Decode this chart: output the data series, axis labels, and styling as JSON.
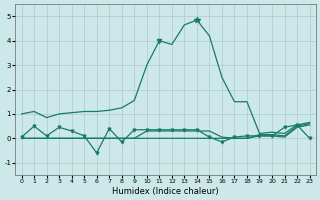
{
  "xlabel": "Humidex (Indice chaleur)",
  "bg_color": "#cce8e8",
  "grid_color": "#b0c8c8",
  "line_color": "#1a7a6a",
  "xlim": [
    -0.5,
    23.5
  ],
  "ylim": [
    -1.5,
    5.5
  ],
  "yticks": [
    -1,
    0,
    1,
    2,
    3,
    4,
    5
  ],
  "xticks": [
    0,
    1,
    2,
    3,
    4,
    5,
    6,
    7,
    8,
    9,
    10,
    11,
    12,
    13,
    14,
    15,
    16,
    17,
    18,
    19,
    20,
    21,
    22,
    23
  ],
  "line1_x": [
    0,
    1,
    2,
    3,
    4,
    5,
    6,
    7,
    8,
    9,
    10,
    11,
    12,
    13,
    14,
    15,
    16,
    17,
    18,
    19,
    20,
    21,
    22,
    23
  ],
  "line1_y": [
    1.0,
    1.1,
    0.85,
    1.0,
    1.05,
    1.1,
    1.1,
    1.15,
    1.25,
    1.55,
    3.0,
    4.0,
    3.85,
    4.65,
    4.85,
    4.2,
    2.5,
    1.5,
    1.5,
    0.2,
    0.25,
    0.2,
    0.55,
    0.65
  ],
  "line2_x": [
    0,
    1,
    2,
    3,
    4,
    5,
    6,
    7,
    8,
    9,
    10,
    11,
    12,
    13,
    14,
    15,
    16,
    17,
    18,
    19,
    20,
    21,
    22,
    23
  ],
  "line2_y": [
    0.05,
    0.5,
    0.1,
    0.45,
    0.3,
    0.1,
    -0.6,
    0.4,
    -0.15,
    0.35,
    0.35,
    0.35,
    0.35,
    0.35,
    0.35,
    0.05,
    -0.15,
    0.05,
    0.1,
    0.1,
    0.1,
    0.45,
    0.55,
    0.0
  ],
  "line3_x": [
    0,
    1,
    2,
    3,
    4,
    5,
    6,
    7,
    8,
    9,
    10,
    11,
    12,
    13,
    14,
    15,
    16,
    17,
    18,
    19,
    20,
    21,
    22,
    23
  ],
  "line3_y": [
    0.0,
    0.0,
    0.0,
    0.0,
    0.0,
    0.0,
    0.0,
    0.0,
    0.0,
    0.0,
    0.0,
    0.0,
    0.0,
    0.0,
    0.0,
    0.0,
    0.0,
    0.0,
    0.0,
    0.15,
    0.15,
    0.1,
    0.5,
    0.6
  ],
  "line4_x": [
    0,
    1,
    2,
    3,
    4,
    5,
    6,
    7,
    8,
    9,
    10,
    11,
    12,
    13,
    14,
    15,
    16,
    17,
    18,
    19,
    20,
    21,
    22,
    23
  ],
  "line4_y": [
    0.0,
    0.0,
    0.0,
    0.0,
    0.0,
    0.0,
    0.0,
    0.0,
    0.0,
    0.0,
    0.3,
    0.3,
    0.3,
    0.3,
    0.3,
    0.3,
    0.05,
    0.0,
    0.0,
    0.1,
    0.1,
    0.05,
    0.45,
    0.55
  ],
  "star_x": [
    14
  ],
  "star_y": [
    4.85
  ],
  "tri_x": [
    11
  ],
  "tri_y": [
    4.0
  ]
}
